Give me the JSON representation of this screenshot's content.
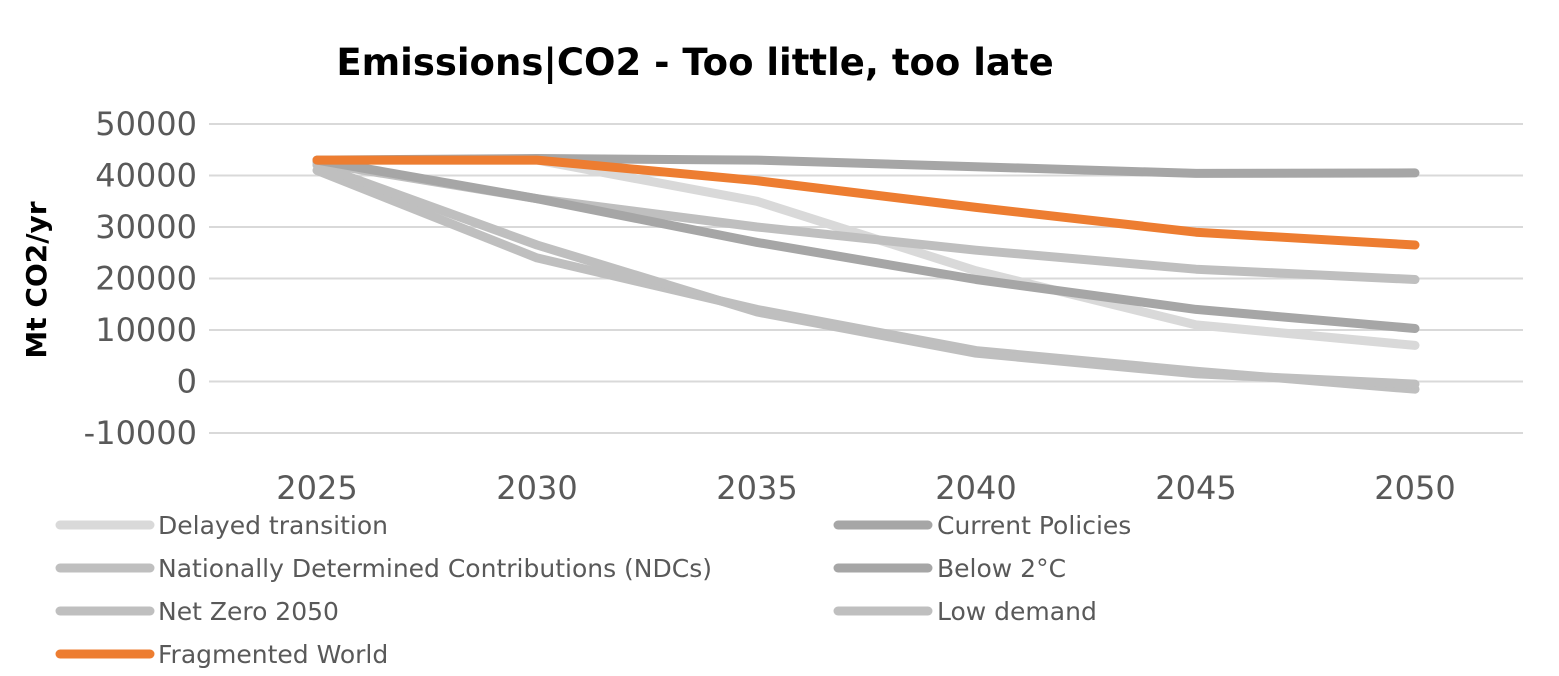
{
  "chart_data": {
    "type": "line",
    "title": "Emissions|CO2 - Too little, too late",
    "xlabel": "",
    "ylabel": "Mt CO2/yr",
    "x": [
      2025,
      2030,
      2035,
      2040,
      2045,
      2050
    ],
    "ylim": [
      -10000,
      50000
    ],
    "yticks": [
      50000,
      40000,
      30000,
      20000,
      10000,
      0,
      -10000
    ],
    "grid": true,
    "legend_position": "bottom",
    "series": [
      {
        "name": "Delayed transition",
        "color": "#d9d9d9",
        "values": [
          43000,
          43000,
          35000,
          21500,
          11000,
          7000
        ]
      },
      {
        "name": "Current Policies",
        "color": "#a6a6a6",
        "values": [
          43000,
          43300,
          43000,
          41700,
          40400,
          40500
        ]
      },
      {
        "name": "Nationally Determined Contributions (NDCs)",
        "color": "#bfbfbf",
        "values": [
          42500,
          35500,
          30000,
          25500,
          21800,
          19800
        ]
      },
      {
        "name": "Below 2°C",
        "color": "#a6a6a6",
        "values": [
          43000,
          35500,
          27000,
          19800,
          14000,
          10300
        ]
      },
      {
        "name": "Net Zero 2050",
        "color": "#bfbfbf",
        "values": [
          41000,
          24000,
          14000,
          6000,
          2000,
          -1500
        ]
      },
      {
        "name": "Low demand",
        "color": "#bfbfbf",
        "values": [
          42000,
          26500,
          13500,
          5500,
          1500,
          -500
        ]
      },
      {
        "name": "Fragmented World",
        "color": "#ed7d31",
        "values": [
          43000,
          43000,
          39000,
          33800,
          29000,
          26500
        ]
      }
    ]
  }
}
